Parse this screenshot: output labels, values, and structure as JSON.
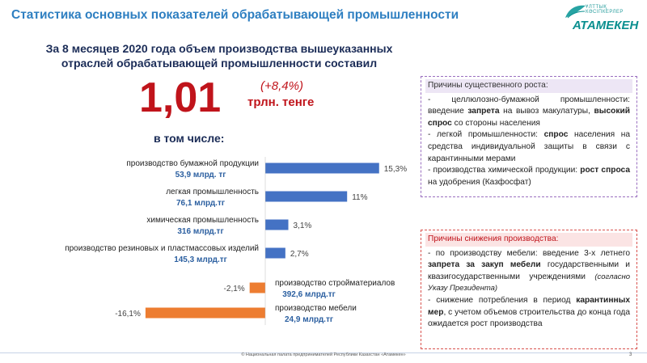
{
  "header": {
    "title": "Статистика  основных показателей обрабатывающей промышленности"
  },
  "logo": {
    "small_text": "ҰЛТТЫҚ  КӘСІПКЕРЛЕР",
    "name": "АТАМЕКЕН"
  },
  "subtitle": {
    "line1": "За 8 месяцев 2020 года объем производства вышеуказанных",
    "line2": "отраслей обрабатывающей промышленности составил"
  },
  "headline": {
    "value": "1,01",
    "growth": "(+8,4%)",
    "unit": "трлн. тенге"
  },
  "including_label": "в том числе:",
  "chart_data": {
    "type": "bar",
    "orientation": "horizontal",
    "categories": [
      "производство бумажной продукции",
      "легкая промышленность",
      "химическая промышленность",
      "производство резиновых и пластмассовых изделий",
      "производство стройматериалов",
      "производство мебели"
    ],
    "volumes": [
      "53,9 млрд. тг",
      "76,1 млрд.тг",
      "316 млрд.тг",
      "145,3 млрд.тг",
      "392,6 млрд.тг",
      "24,9 млрд.тг"
    ],
    "values": [
      15.3,
      11,
      3.1,
      2.7,
      -2.1,
      -16.1
    ],
    "value_labels": [
      "15,3%",
      "11%",
      "3,1%",
      "2,7%",
      "-2,1%",
      "-16,1%"
    ],
    "colors": {
      "positive": "#4472c4",
      "negative": "#ed7d31"
    }
  },
  "growth_box": {
    "heading": "Причины существенного роста:",
    "items": [
      {
        "parts": [
          {
            "t": "- целлюлозно-бумажной промышленности: введение ",
            "b": false
          },
          {
            "t": "запрета",
            "b": true
          },
          {
            "t": " на вывоз макулатуры, ",
            "b": false
          },
          {
            "t": "высокий спрос",
            "b": true
          },
          {
            "t": " со стороны населения",
            "b": false
          }
        ]
      },
      {
        "parts": [
          {
            "t": "- легкой промышленности: ",
            "b": false
          },
          {
            "t": "спрос",
            "b": true
          },
          {
            "t": " населения на средства индивидуальной защиты в связи с карантинными мерами",
            "b": false
          }
        ]
      },
      {
        "parts": [
          {
            "t": "- производства химической продукции: ",
            "b": false
          },
          {
            "t": "рост спроса",
            "b": true
          },
          {
            "t": " на удобрения (Казфосфат)",
            "b": false
          }
        ]
      }
    ]
  },
  "decline_box": {
    "heading": "Причины снижения производства:",
    "items": [
      {
        "parts": [
          {
            "t": "- по производству мебели: введение 3-х летнего ",
            "b": false
          },
          {
            "t": "запрета за закуп мебели",
            "b": true
          },
          {
            "t": " государственными и квазигосударственными учреждениями ",
            "b": false
          },
          {
            "t": "(согласно Указу Президента)",
            "b": false,
            "i": true
          }
        ]
      },
      {
        "parts": [
          {
            "t": "- снижение потребления в период ",
            "b": false
          },
          {
            "t": "карантинных мер",
            "b": true
          },
          {
            "t": ", с учетом объемов строительства до конца года ожидается рост производства",
            "b": false
          }
        ]
      }
    ]
  },
  "footer": {
    "text": "© Национальная палата предпринимателей Республики Казахстан «Атамекен»",
    "page": "3"
  }
}
